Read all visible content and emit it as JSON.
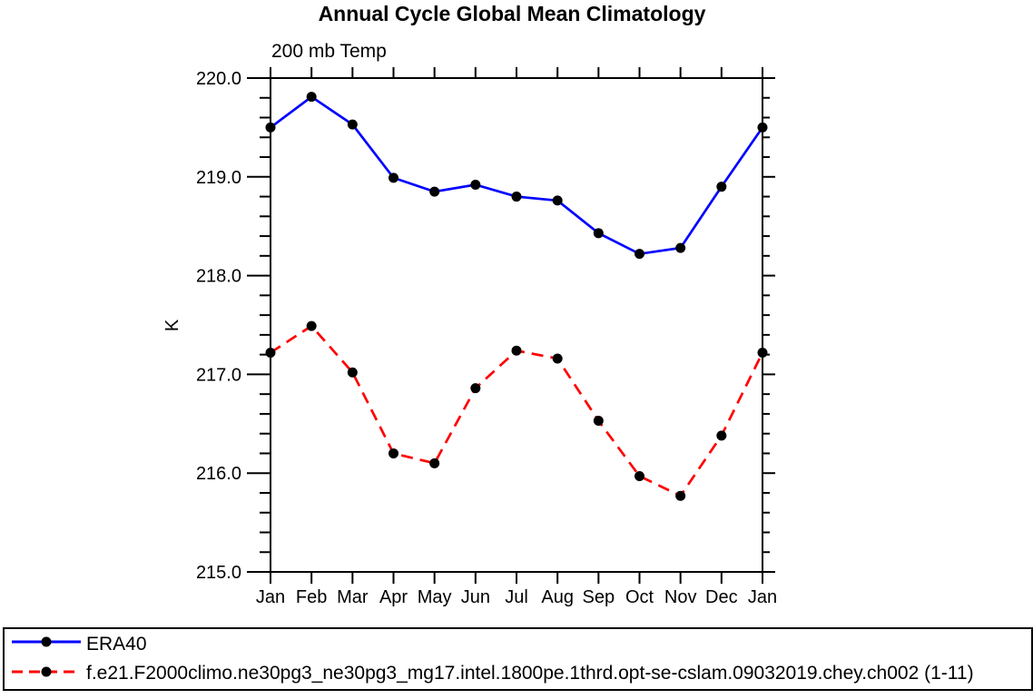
{
  "window": {
    "background": "#ffffff"
  },
  "chart_data": {
    "type": "line",
    "title": "Annual Cycle Global Mean Climatology",
    "subtitle": "200 mb Temp",
    "xlabel": "",
    "ylabel": "K",
    "categories": [
      "Jan",
      "Feb",
      "Mar",
      "Apr",
      "May",
      "Jun",
      "Jul",
      "Aug",
      "Sep",
      "Oct",
      "Nov",
      "Dec",
      "Jan"
    ],
    "ylim": [
      215.0,
      220.0
    ],
    "y_major_ticks": [
      215.0,
      216.0,
      217.0,
      218.0,
      219.0,
      220.0
    ],
    "y_tick_labels": [
      "215.0",
      "216.0",
      "217.0",
      "218.0",
      "219.0",
      "220.0"
    ],
    "y_minor_step": 0.2,
    "grid": false,
    "legend_position": "bottom-box",
    "frame_color": "#000000",
    "marker_color": "#000000",
    "series": [
      {
        "name": "ERA40",
        "color": "#0000ff",
        "style": "solid",
        "values": [
          219.5,
          219.81,
          219.53,
          218.99,
          218.85,
          218.92,
          218.8,
          218.76,
          218.43,
          218.22,
          218.28,
          218.9,
          219.5
        ]
      },
      {
        "name": "f.e21.F2000climo.ne30pg3_ne30pg3_mg17.intel.1800pe.1thrd.opt-se-cslam.09032019.chey.ch002 (1-11)",
        "color": "#ff0000",
        "style": "dashed",
        "values": [
          217.22,
          217.49,
          217.02,
          216.2,
          216.1,
          216.86,
          217.24,
          217.16,
          216.53,
          215.97,
          215.77,
          216.38,
          217.22
        ]
      }
    ]
  }
}
